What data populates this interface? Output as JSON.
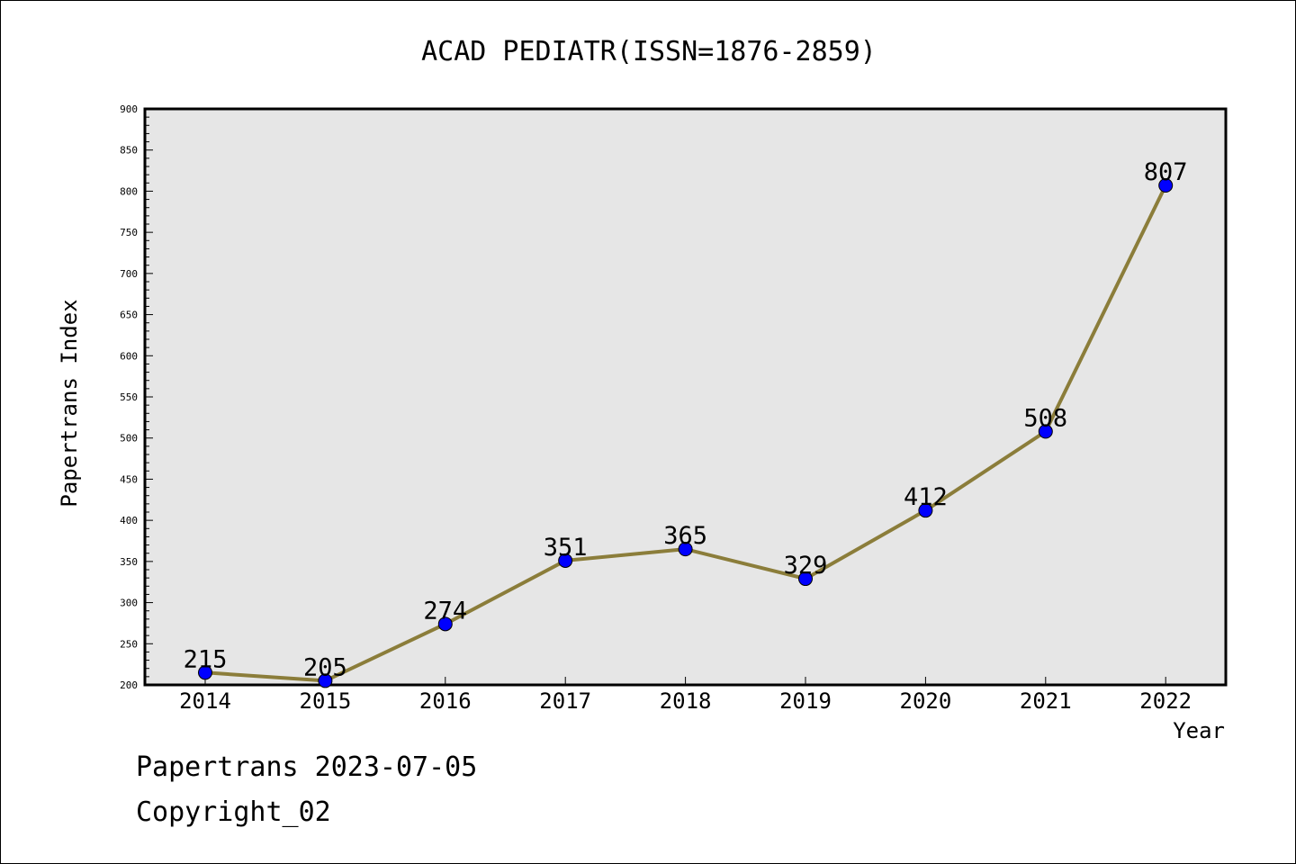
{
  "chart_data": {
    "type": "line",
    "title": "ACAD PEDIATR(ISSN=1876-2859)",
    "xlabel": "Year",
    "ylabel": "Papertrans Index",
    "categories": [
      "2014",
      "2015",
      "2016",
      "2017",
      "2018",
      "2019",
      "2020",
      "2021",
      "2022"
    ],
    "series": [
      {
        "values": [
          215,
          205,
          274,
          351,
          365,
          329,
          412,
          508,
          807
        ]
      }
    ],
    "ylim": [
      200,
      900
    ],
    "yticks": [
      200,
      250,
      300,
      350,
      400,
      450,
      500,
      550,
      600,
      650,
      700,
      750,
      800,
      850,
      900
    ],
    "grid": false,
    "line_color": "#8b7d3a",
    "marker_color": "#0000ff",
    "plot_background": "#e6e6e6"
  },
  "footer": {
    "date_line": "Papertrans 2023-07-05",
    "copyright_line": "Copyright_02"
  }
}
